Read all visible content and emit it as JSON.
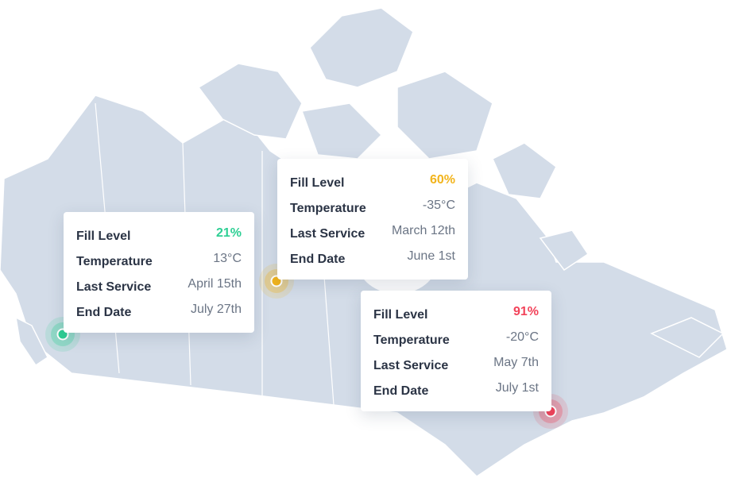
{
  "cards": [
    {
      "color": "#2ecf94",
      "rows": [
        {
          "label": "Fill Level",
          "value": "21%"
        },
        {
          "label": "Temperature",
          "value": "13°C"
        },
        {
          "label": "Last Service",
          "value": "April 15th"
        },
        {
          "label": "End Date",
          "value": "July 27th"
        }
      ]
    },
    {
      "color": "#f2b41c",
      "rows": [
        {
          "label": "Fill Level",
          "value": "60%"
        },
        {
          "label": "Temperature",
          "value": "-35°C"
        },
        {
          "label": "Last Service",
          "value": "March 12th"
        },
        {
          "label": "End Date",
          "value": "June 1st"
        }
      ]
    },
    {
      "color": "#f2435a",
      "rows": [
        {
          "label": "Fill Level",
          "value": "91%"
        },
        {
          "label": "Temperature",
          "value": "-20°C"
        },
        {
          "label": "Last Service",
          "value": "May 7th"
        },
        {
          "label": "End Date",
          "value": "July 1st"
        }
      ]
    }
  ]
}
